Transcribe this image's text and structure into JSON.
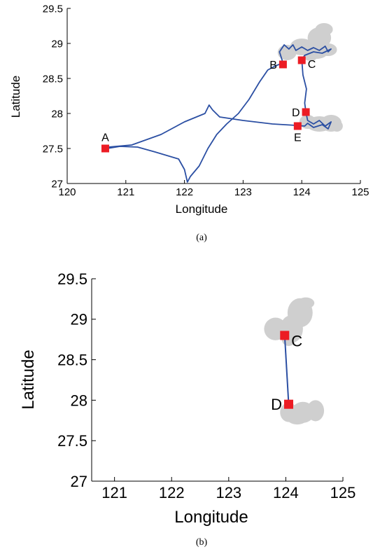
{
  "chart_data": [
    {
      "type": "line",
      "panel_label": "(a)",
      "xlabel": "Longitude",
      "ylabel": "Latitude",
      "xlim": [
        120,
        125
      ],
      "ylim": [
        27,
        29.5
      ],
      "xticks": [
        "120",
        "121",
        "122",
        "123",
        "124",
        "125"
      ],
      "yticks": [
        "27",
        "27.5",
        "28",
        "28.5",
        "29",
        "29.5"
      ],
      "line_color": "#2b4fa3",
      "marker_color": "#ec1c24",
      "cluster_color": "#cfcfcf",
      "track": [
        [
          120.68,
          27.5
        ],
        [
          120.9,
          27.53
        ],
        [
          121.2,
          27.52
        ],
        [
          121.5,
          27.45
        ],
        [
          121.9,
          27.35
        ],
        [
          122.0,
          27.2
        ],
        [
          122.05,
          27.02
        ],
        [
          122.1,
          27.1
        ],
        [
          122.25,
          27.25
        ],
        [
          122.4,
          27.5
        ],
        [
          122.55,
          27.7
        ],
        [
          122.72,
          27.85
        ],
        [
          122.92,
          28.0
        ],
        [
          123.1,
          28.2
        ],
        [
          123.28,
          28.45
        ],
        [
          123.42,
          28.62
        ],
        [
          123.55,
          28.68
        ],
        [
          123.68,
          28.72
        ],
        [
          123.62,
          28.88
        ],
        [
          123.7,
          28.98
        ],
        [
          123.78,
          28.92
        ],
        [
          123.85,
          28.98
        ],
        [
          123.9,
          28.9
        ],
        [
          124.0,
          28.95
        ],
        [
          124.1,
          28.9
        ],
        [
          124.2,
          28.94
        ],
        [
          124.3,
          28.9
        ],
        [
          124.4,
          28.96
        ],
        [
          124.45,
          28.88
        ],
        [
          124.5,
          28.92
        ],
        [
          124.35,
          28.86
        ],
        [
          124.2,
          28.88
        ],
        [
          124.05,
          28.83
        ],
        [
          124.0,
          28.77
        ],
        [
          124.02,
          28.55
        ],
        [
          124.08,
          28.35
        ],
        [
          124.05,
          28.15
        ],
        [
          124.07,
          28.02
        ],
        [
          124.1,
          27.9
        ],
        [
          124.2,
          27.85
        ],
        [
          124.3,
          27.9
        ],
        [
          124.4,
          27.82
        ],
        [
          124.5,
          27.88
        ],
        [
          124.45,
          27.78
        ],
        [
          124.35,
          27.84
        ],
        [
          124.2,
          27.8
        ],
        [
          124.1,
          27.86
        ],
        [
          124.05,
          27.82
        ],
        [
          123.9,
          27.83
        ],
        [
          123.5,
          27.85
        ],
        [
          123.0,
          27.9
        ],
        [
          122.6,
          27.95
        ],
        [
          122.48,
          28.05
        ],
        [
          122.42,
          28.12
        ],
        [
          122.35,
          28.0
        ],
        [
          122.0,
          27.88
        ],
        [
          121.6,
          27.7
        ],
        [
          121.1,
          27.55
        ],
        [
          120.7,
          27.52
        ],
        [
          120.65,
          27.5
        ]
      ],
      "clusters": [
        [
          [
            123.75,
            28.87,
            0.16,
            0.11
          ],
          [
            124.0,
            28.95,
            0.2,
            0.12
          ],
          [
            124.25,
            28.88,
            0.2,
            0.1
          ],
          [
            124.45,
            28.91,
            0.15,
            0.09
          ],
          [
            124.3,
            29.08,
            0.2,
            0.15
          ],
          [
            124.38,
            29.2,
            0.15,
            0.09
          ],
          [
            124.15,
            28.82,
            0.12,
            0.07
          ]
        ],
        [
          [
            124.1,
            27.88,
            0.14,
            0.1
          ],
          [
            124.3,
            27.85,
            0.22,
            0.11
          ],
          [
            124.5,
            27.86,
            0.18,
            0.12
          ],
          [
            124.6,
            27.82,
            0.1,
            0.08
          ]
        ]
      ],
      "markers": [
        {
          "label": "A",
          "x": 120.65,
          "y": 27.5,
          "label_side": "top"
        },
        {
          "label": "B",
          "x": 123.68,
          "y": 28.7,
          "label_side": "left"
        },
        {
          "label": "C",
          "x": 124.0,
          "y": 28.76,
          "label_side": "right"
        },
        {
          "label": "D",
          "x": 124.07,
          "y": 28.02,
          "label_side": "left"
        },
        {
          "label": "E",
          "x": 123.93,
          "y": 27.82,
          "label_side": "bottom"
        }
      ]
    },
    {
      "type": "line",
      "panel_label": "(b)",
      "xlabel": "Longitude",
      "ylabel": "Latitude",
      "xlim": [
        120.6,
        125
      ],
      "ylim": [
        27,
        29.5
      ],
      "xticks": [
        "121",
        "122",
        "123",
        "124",
        "125"
      ],
      "yticks": [
        "27",
        "27.5",
        "28",
        "28.5",
        "29",
        "29.5"
      ],
      "line_color": "#2b4fa3",
      "marker_color": "#ec1c24",
      "cluster_color": "#cfcfcf",
      "track": [
        [
          123.98,
          28.8
        ],
        [
          124.05,
          27.95
        ]
      ],
      "clusters": [
        [
          [
            123.82,
            28.88,
            0.2,
            0.14
          ],
          [
            124.1,
            28.88,
            0.2,
            0.17
          ],
          [
            124.25,
            29.08,
            0.22,
            0.18
          ],
          [
            124.35,
            29.2,
            0.15,
            0.07
          ],
          [
            124.05,
            28.75,
            0.12,
            0.08
          ]
        ],
        [
          [
            124.05,
            27.85,
            0.15,
            0.12
          ],
          [
            124.3,
            27.85,
            0.2,
            0.13
          ],
          [
            124.52,
            27.87,
            0.15,
            0.13
          ],
          [
            124.2,
            27.78,
            0.18,
            0.08
          ]
        ]
      ],
      "markers": [
        {
          "label": "C",
          "x": 123.98,
          "y": 28.8,
          "label_side": "right"
        },
        {
          "label": "D",
          "x": 124.05,
          "y": 27.95,
          "label_side": "left"
        }
      ]
    }
  ]
}
